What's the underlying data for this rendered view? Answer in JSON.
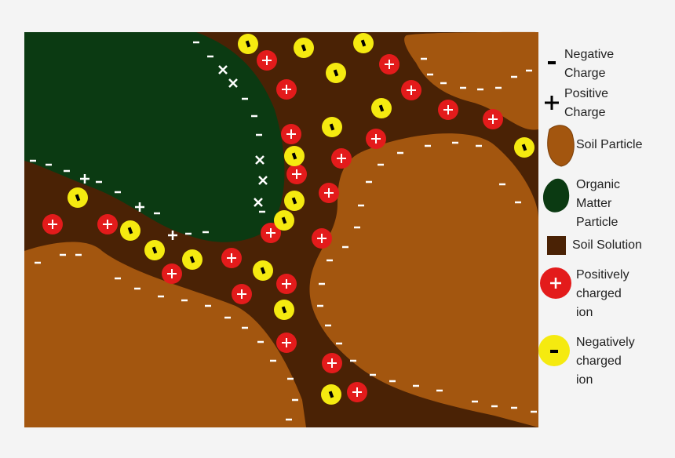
{
  "legend": {
    "items": [
      {
        "lines": [
          "Negative",
          "Charge"
        ]
      },
      {
        "lines": [
          "Positive",
          "Charge"
        ]
      },
      {
        "lines": [
          "Soil Particle"
        ]
      },
      {
        "lines": [
          "Organic",
          "Matter",
          "Particle"
        ]
      },
      {
        "lines": [
          "Soil Solution"
        ]
      },
      {
        "lines": [
          "Positively",
          "charged",
          "ion"
        ]
      },
      {
        "lines": [
          "Negatively",
          "charged",
          "ion"
        ]
      }
    ]
  }
}
